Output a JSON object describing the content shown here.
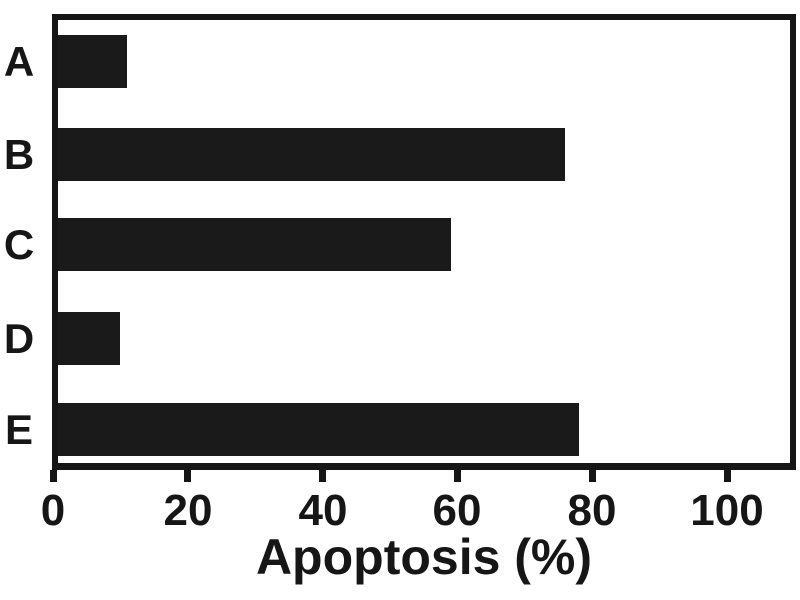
{
  "chart_data": {
    "type": "bar",
    "orientation": "horizontal",
    "title": "",
    "xlabel": "Apoptosis (%)",
    "ylabel": "",
    "categories": [
      "A",
      "B",
      "C",
      "D",
      "E"
    ],
    "values": [
      11,
      76,
      59,
      10,
      78
    ],
    "xticks": [
      0,
      20,
      40,
      60,
      80,
      100
    ],
    "xlim": [
      0,
      110
    ],
    "grid": false,
    "legend": false,
    "bar_color": "#1a1a1a",
    "axis_color": "#161616",
    "background_color": "#ffffff"
  }
}
